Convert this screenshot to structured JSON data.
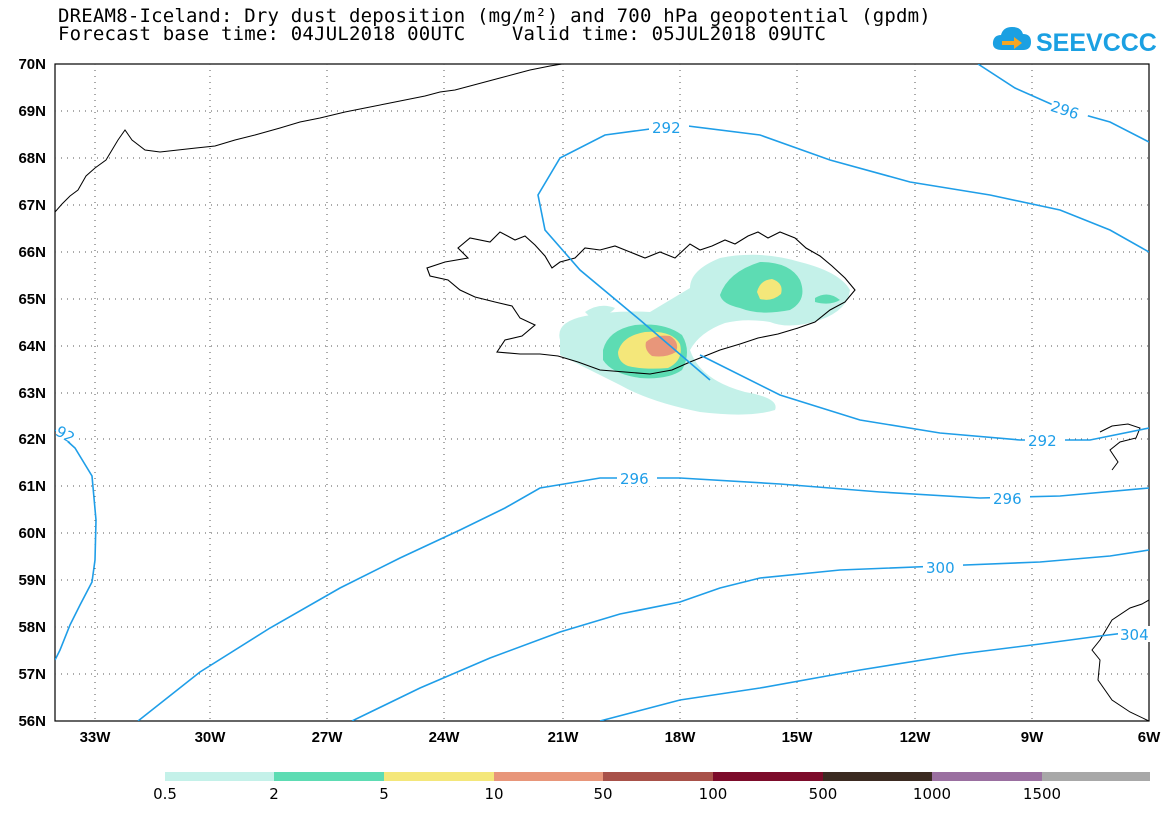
{
  "title": {
    "line1": "DREAM8-Iceland: Dry dust deposition (mg/m²) and 700 hPa geopotential (gpdm)",
    "line2": "Forecast base time: 04JUL2018 00UTC    Valid time: 05JUL2018 09UTC"
  },
  "logo": {
    "text": "SEEVCCC",
    "icon": "cloud-arrow-icon",
    "color": "#1ba0e2"
  },
  "map": {
    "lat_labels": [
      "70N",
      "69N",
      "68N",
      "67N",
      "66N",
      "65N",
      "64N",
      "63N",
      "62N",
      "61N",
      "60N",
      "59N",
      "58N",
      "57N",
      "56N"
    ],
    "lon_labels": [
      "33W",
      "30W",
      "27W",
      "24W",
      "21W",
      "18W",
      "15W",
      "12W",
      "9W",
      "6W"
    ],
    "contour_labels": [
      "292",
      "296",
      "296",
      "296",
      "300",
      "304",
      "92"
    ],
    "contour_color": "#1f9ee8"
  },
  "legend": {
    "labels": [
      "0.5",
      "2",
      "5",
      "10",
      "50",
      "100",
      "500",
      "1000",
      "1500"
    ],
    "colors": [
      "#c4f1e9",
      "#5ddcb3",
      "#f4e77a",
      "#e8967a",
      "#a85149",
      "#7c0b2a",
      "#3b2a21",
      "#9a6fa0",
      "#a8a8a8"
    ]
  }
}
